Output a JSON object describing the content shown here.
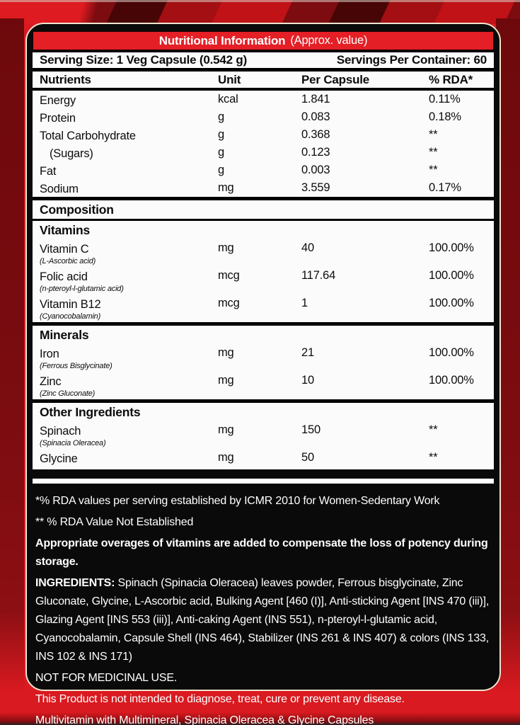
{
  "header": {
    "title": "Nutritional Information",
    "subtitle": "(Approx. value)"
  },
  "serving": {
    "size": "Serving Size: 1 Veg Capsule (0.542 g)",
    "per_container": "Servings Per Container: 60"
  },
  "table": {
    "columns": [
      "Nutrients",
      "Unit",
      "Per Capsule",
      "% RDA*"
    ],
    "rows": [
      {
        "type": "item",
        "name": "Energy",
        "unit": "kcal",
        "per_capsule": "1.841",
        "rda": "0.11%"
      },
      {
        "type": "item",
        "name": "Protein",
        "unit": "g",
        "per_capsule": "0.083",
        "rda": "0.18%"
      },
      {
        "type": "item",
        "name": "Total Carbohydrate",
        "unit": "g",
        "per_capsule": "0.368",
        "rda": "**"
      },
      {
        "type": "item",
        "name": "(Sugars)",
        "indent": true,
        "unit": "g",
        "per_capsule": "0.123",
        "rda": "**"
      },
      {
        "type": "item",
        "name": "Fat",
        "unit": "g",
        "per_capsule": "0.003",
        "rda": "**"
      },
      {
        "type": "item",
        "name": "Sodium",
        "unit": "mg",
        "per_capsule": "3.559",
        "rda": "0.17%"
      },
      {
        "type": "section",
        "name": "Composition",
        "style": "major"
      },
      {
        "type": "section",
        "name": "Vitamins",
        "style": "plain"
      },
      {
        "type": "item",
        "name": "Vitamin C",
        "sub": "(L-Ascorbic acid)",
        "unit": "mg",
        "per_capsule": "40",
        "rda": "100.00%"
      },
      {
        "type": "item",
        "name": "Folic acid",
        "sub": "(n-pteroyl-l-glutamic acid)",
        "unit": "mcg",
        "per_capsule": "117.64",
        "rda": "100.00%"
      },
      {
        "type": "item",
        "name": "Vitamin B12",
        "sub": "(Cyanocobalamin)",
        "unit": "mcg",
        "per_capsule": "1",
        "rda": "100.00%"
      },
      {
        "type": "section",
        "name": "Minerals",
        "style": "sub-bordered"
      },
      {
        "type": "item",
        "name": "Iron",
        "sub": "(Ferrous Bisglycinate)",
        "unit": "mg",
        "per_capsule": "21",
        "rda": "100.00%"
      },
      {
        "type": "item",
        "name": "Zinc",
        "sub": "(Zinc Gluconate)",
        "unit": "mg",
        "per_capsule": "10",
        "rda": "100.00%"
      },
      {
        "type": "section",
        "name": "Other Ingredients",
        "style": "sub-bordered"
      },
      {
        "type": "item",
        "name": "Spinach",
        "sub": "(Spinacia Oleracea)",
        "unit": "mg",
        "per_capsule": "150",
        "rda": "**"
      },
      {
        "type": "item",
        "name": "Glycine",
        "unit": "mg",
        "per_capsule": "50",
        "rda": "**"
      }
    ]
  },
  "footnotes": {
    "rda_note": "*% RDA values per serving established by ICMR 2010 for Women-Sedentary Work",
    "rda_not_established": "** % RDA Value Not Established",
    "overages": "Appropriate overages of vitamins are added to compensate the loss of potency during storage.",
    "ingredients_label": "INGREDIENTS:",
    "ingredients": " Spinach (Spinacia Oleracea) leaves powder, Ferrous bisglycinate, Zinc Gluconate, Glycine, L-Ascorbic acid, Bulking Agent [460 (I)], Anti-sticking Agent [INS 470 (iii)], Glazing Agent [INS 553 (iii)], Anti-caking Agent (INS 551), n-pteroyl-l-glutamic acid, Cyanocobalamin, Capsule Shell (INS 464), Stabilizer (INS 261 & INS 407) & colors (INS 133, INS 102 & INS 171)",
    "not_medicinal": "NOT FOR MEDICINAL USE.",
    "disclaimer": "This Product is not intended to diagnose, treat, cure or prevent any disease.",
    "product_name": "Multivitamin with Multimineral, Spinacia Oleracea & Glycine Capsules"
  },
  "colors": {
    "background_red": "#d91a20",
    "dark_red": "#7c0c10",
    "header_red": "#e41f26",
    "panel_black": "#0a0a0a",
    "outline_cream": "#efe5d0",
    "sheet_white": "#fbfbfb",
    "text_white": "#ffffff"
  }
}
